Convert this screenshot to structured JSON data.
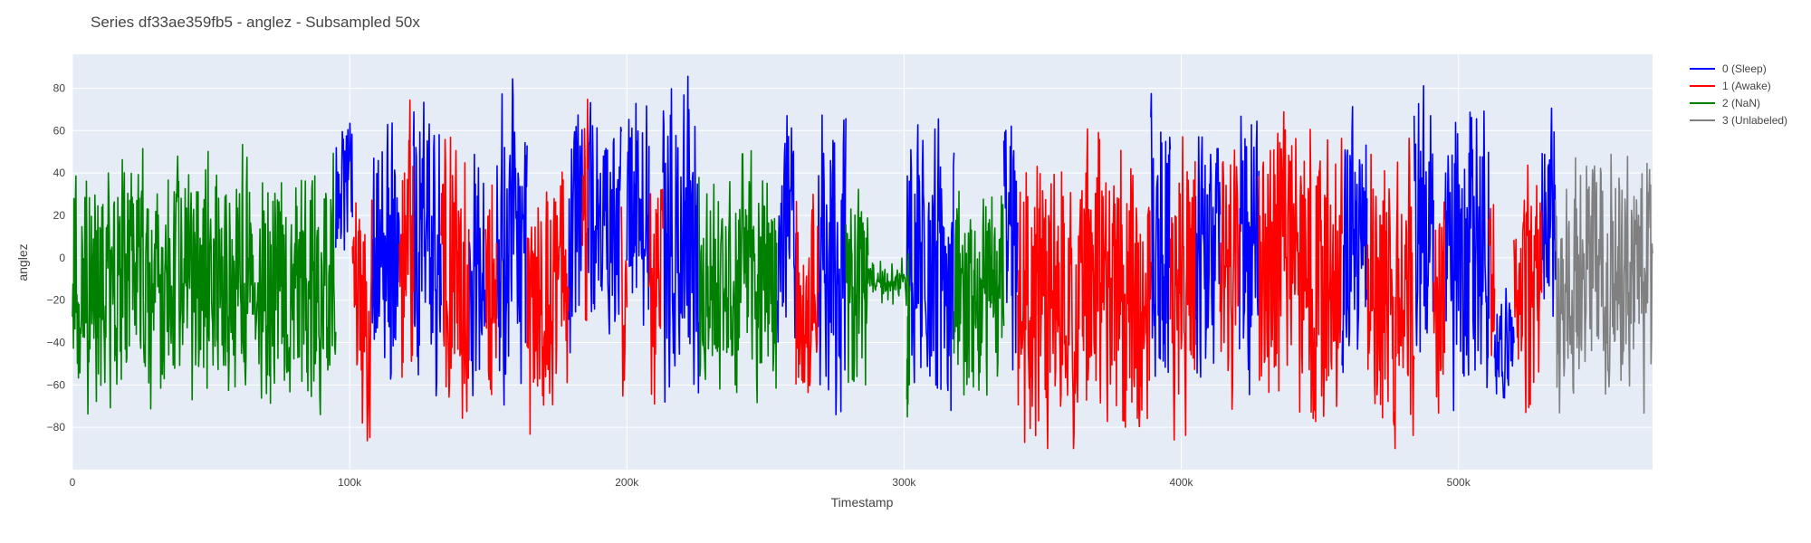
{
  "chart_data": {
    "type": "line",
    "title": "Series df33ae359fb5 - anglez - Subsampled 50x",
    "xlabel": "Timestamp",
    "ylabel": "anglez",
    "xlim": [
      0,
      570000
    ],
    "ylim": [
      -100,
      96
    ],
    "x_ticks": [
      {
        "value": 0,
        "label": "0"
      },
      {
        "value": 100000,
        "label": "100k"
      },
      {
        "value": 200000,
        "label": "200k"
      },
      {
        "value": 300000,
        "label": "300k"
      },
      {
        "value": 400000,
        "label": "400k"
      },
      {
        "value": 500000,
        "label": "500k"
      }
    ],
    "y_ticks": [
      {
        "value": -80,
        "label": "−80"
      },
      {
        "value": -60,
        "label": "−60"
      },
      {
        "value": -40,
        "label": "−40"
      },
      {
        "value": -20,
        "label": "−20"
      },
      {
        "value": 0,
        "label": "0"
      },
      {
        "value": 20,
        "label": "20"
      },
      {
        "value": 40,
        "label": "40"
      },
      {
        "value": 60,
        "label": "60"
      },
      {
        "value": 80,
        "label": "80"
      }
    ],
    "grid": true,
    "legend_position": "top-right",
    "background_color": "#e5ecf6",
    "series": [
      {
        "name": "0 (Sleep)",
        "color": "#0000ff",
        "segments": [
          {
            "x_start": 95000,
            "x_end": 101000,
            "center": 35,
            "amp": 40
          },
          {
            "x_start": 108000,
            "x_end": 118000,
            "center": 0,
            "amp": 70
          },
          {
            "x_start": 123000,
            "x_end": 133000,
            "center": 10,
            "amp": 70
          },
          {
            "x_start": 143000,
            "x_end": 149000,
            "center": 0,
            "amp": 70
          },
          {
            "x_start": 153000,
            "x_end": 164000,
            "center": 0,
            "amp": 75
          },
          {
            "x_start": 179000,
            "x_end": 184000,
            "center": 10,
            "amp": 60
          },
          {
            "x_start": 186000,
            "x_end": 198000,
            "center": 20,
            "amp": 55
          },
          {
            "x_start": 200000,
            "x_end": 208000,
            "center": 25,
            "amp": 60
          },
          {
            "x_start": 213000,
            "x_end": 226000,
            "center": 10,
            "amp": 75
          },
          {
            "x_start": 254000,
            "x_end": 261000,
            "center": 10,
            "amp": 60
          },
          {
            "x_start": 269000,
            "x_end": 279000,
            "center": 0,
            "amp": 75
          },
          {
            "x_start": 301000,
            "x_end": 318000,
            "center": 0,
            "amp": 75
          },
          {
            "x_start": 336000,
            "x_end": 341000,
            "center": 15,
            "amp": 65
          },
          {
            "x_start": 389000,
            "x_end": 396000,
            "center": 5,
            "amp": 70
          },
          {
            "x_start": 405000,
            "x_end": 414000,
            "center": 5,
            "amp": 70
          },
          {
            "x_start": 421000,
            "x_end": 428000,
            "center": 10,
            "amp": 70
          },
          {
            "x_start": 458000,
            "x_end": 467000,
            "center": 10,
            "amp": 70
          },
          {
            "x_start": 484000,
            "x_end": 491000,
            "center": 10,
            "amp": 70
          },
          {
            "x_start": 495000,
            "x_end": 511000,
            "center": 5,
            "amp": 75
          },
          {
            "x_start": 513000,
            "x_end": 520000,
            "center": -40,
            "amp": 30
          },
          {
            "x_start": 530000,
            "x_end": 535000,
            "center": 10,
            "amp": 60
          }
        ]
      },
      {
        "name": "1 (Awake)",
        "color": "#ff0000",
        "segments": [
          {
            "x_start": 101000,
            "x_end": 108000,
            "center": -25,
            "amp": 55
          },
          {
            "x_start": 118000,
            "x_end": 123000,
            "center": 0,
            "amp": 70
          },
          {
            "x_start": 133000,
            "x_end": 143000,
            "center": -5,
            "amp": 70
          },
          {
            "x_start": 149000,
            "x_end": 153000,
            "center": -5,
            "amp": 65
          },
          {
            "x_start": 164000,
            "x_end": 179000,
            "center": -15,
            "amp": 70
          },
          {
            "x_start": 184000,
            "x_end": 186000,
            "center": 5,
            "amp": 70
          },
          {
            "x_start": 198000,
            "x_end": 200000,
            "center": -20,
            "amp": 60
          },
          {
            "x_start": 208000,
            "x_end": 213000,
            "center": -10,
            "amp": 60
          },
          {
            "x_start": 261000,
            "x_end": 269000,
            "center": -20,
            "amp": 55
          },
          {
            "x_start": 341000,
            "x_end": 389000,
            "center": -15,
            "amp": 70
          },
          {
            "x_start": 396000,
            "x_end": 405000,
            "center": -10,
            "amp": 70
          },
          {
            "x_start": 414000,
            "x_end": 421000,
            "center": -10,
            "amp": 65
          },
          {
            "x_start": 428000,
            "x_end": 458000,
            "center": -5,
            "amp": 75
          },
          {
            "x_start": 467000,
            "x_end": 484000,
            "center": -15,
            "amp": 70
          },
          {
            "x_start": 491000,
            "x_end": 495000,
            "center": -20,
            "amp": 60
          },
          {
            "x_start": 511000,
            "x_end": 513000,
            "center": -15,
            "amp": 60
          },
          {
            "x_start": 520000,
            "x_end": 530000,
            "center": -10,
            "amp": 70
          }
        ]
      },
      {
        "name": "2 (NaN)",
        "color": "#008000",
        "segments": [
          {
            "x_start": 0,
            "x_end": 95000,
            "center": -10,
            "amp": 60
          },
          {
            "x_start": 226000,
            "x_end": 254000,
            "center": -15,
            "amp": 55
          },
          {
            "x_start": 279000,
            "x_end": 287000,
            "center": -20,
            "amp": 55
          },
          {
            "x_start": 287000,
            "x_end": 301000,
            "center": -10,
            "amp": 10
          },
          {
            "x_start": 301000,
            "x_end": 302000,
            "center": -40,
            "amp": 45
          },
          {
            "x_start": 318000,
            "x_end": 336000,
            "center": -15,
            "amp": 55
          }
        ]
      },
      {
        "name": "3 (Unlabeled)",
        "color": "#808080",
        "segments": [
          {
            "x_start": 535000,
            "x_end": 570000,
            "center": -5,
            "amp": 60
          }
        ]
      }
    ]
  }
}
